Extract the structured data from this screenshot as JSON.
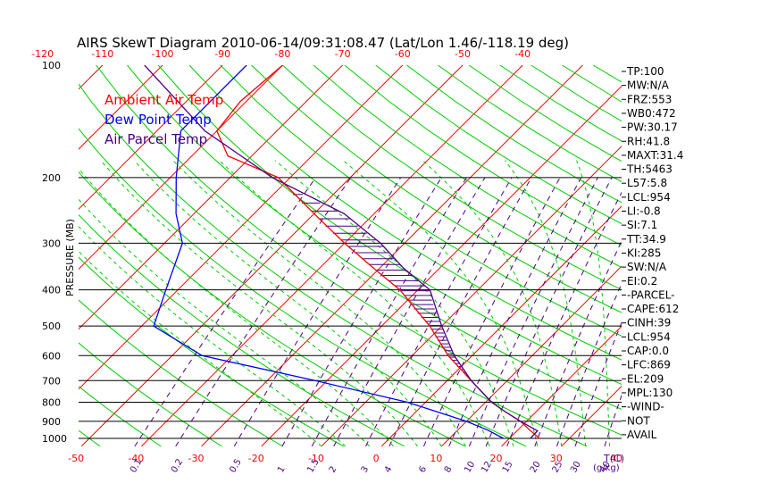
{
  "chart_data": {
    "type": "line",
    "title": "AIRS SkewT Diagram 2010-06-14/09:31:08.47 (Lat/Lon 1.46/-118.19 deg)",
    "ylabel": "PRESSURE (MB)",
    "xlabel_bottom_unit": "T(C)",
    "mixing_ratio_unit": "(g/kg)",
    "pressure_levels": [
      100,
      200,
      300,
      400,
      500,
      600,
      700,
      800,
      900,
      1000
    ],
    "top_temp_ticks": [
      -120,
      -110,
      -100,
      -90,
      -80,
      -70,
      -60,
      -50,
      -40
    ],
    "bottom_temp_ticks": [
      -50,
      -40,
      -30,
      -20,
      -10,
      0,
      10,
      20,
      30,
      40
    ],
    "mixing_ratio_ticks": [
      "0.1",
      "0.2",
      "0.5",
      "1",
      "1.5",
      "2",
      "3",
      "4",
      "6",
      "8",
      "10",
      "12",
      "15",
      "20",
      "25",
      "30",
      "40"
    ],
    "legend": [
      {
        "label": "Ambient Air Temp",
        "color": "#ff0000"
      },
      {
        "label": "Dew Point Temp",
        "color": "#0000ff"
      },
      {
        "label": "Air Parcel Temp",
        "color": "#4b0082"
      }
    ],
    "grid": true,
    "colors": {
      "isotherm": "#ff0000",
      "dry_adiabat": "#00cc00",
      "moist_adiabat": "#00cc00",
      "mixing_ratio": "#4b0082",
      "isobar": "#000000",
      "cape": "#4b0082"
    },
    "series": [
      {
        "name": "Ambient Air Temp",
        "key": "temp",
        "points": [
          [
            100,
            -80
          ],
          [
            125,
            -81
          ],
          [
            150,
            -80
          ],
          [
            175,
            -74
          ],
          [
            200,
            -62
          ],
          [
            250,
            -50
          ],
          [
            300,
            -40
          ],
          [
            350,
            -31
          ],
          [
            400,
            -23
          ],
          [
            500,
            -12
          ],
          [
            600,
            -4
          ],
          [
            700,
            4
          ],
          [
            800,
            11
          ],
          [
            850,
            15
          ],
          [
            900,
            19
          ],
          [
            950,
            22
          ],
          [
            1000,
            25
          ]
        ]
      },
      {
        "name": "Dew Point Temp",
        "key": "dew",
        "points": [
          [
            100,
            -86
          ],
          [
            150,
            -86
          ],
          [
            200,
            -79
          ],
          [
            250,
            -73
          ],
          [
            300,
            -67
          ],
          [
            400,
            -62
          ],
          [
            500,
            -58
          ],
          [
            600,
            -45
          ],
          [
            700,
            -22
          ],
          [
            800,
            -3
          ],
          [
            900,
            10
          ],
          [
            950,
            15
          ],
          [
            1000,
            19
          ]
        ]
      },
      {
        "name": "Air Parcel Temp",
        "key": "parcel",
        "points": [
          [
            100,
            -103
          ],
          [
            150,
            -82
          ],
          [
            200,
            -63
          ],
          [
            250,
            -45
          ],
          [
            300,
            -34
          ],
          [
            350,
            -26
          ],
          [
            400,
            -18
          ],
          [
            500,
            -10
          ],
          [
            600,
            -3
          ],
          [
            700,
            4
          ],
          [
            800,
            11
          ],
          [
            850,
            15
          ],
          [
            900,
            19
          ],
          [
            954,
            23.4
          ],
          [
            1000,
            23.5
          ]
        ]
      }
    ],
    "indices": [
      "TP:100",
      "MW:N/A",
      "FRZ:553",
      "WB0:472",
      "PW:30.17",
      "RH:41.8",
      "MAXT:31.4",
      "TH:5463",
      "L57:5.8",
      "LCL:954",
      "LI:-0.8",
      "SI:7.1",
      "TT:34.9",
      "KI:285",
      "SW:N/A",
      "EI:0.2",
      "-PARCEL-",
      "CAPE:612",
      "CINH:39",
      "LCL:954",
      "CAP:0.0",
      "LFC:869",
      "EL:209",
      "MPL:130",
      "-WIND-",
      "NOT",
      "AVAIL"
    ]
  }
}
